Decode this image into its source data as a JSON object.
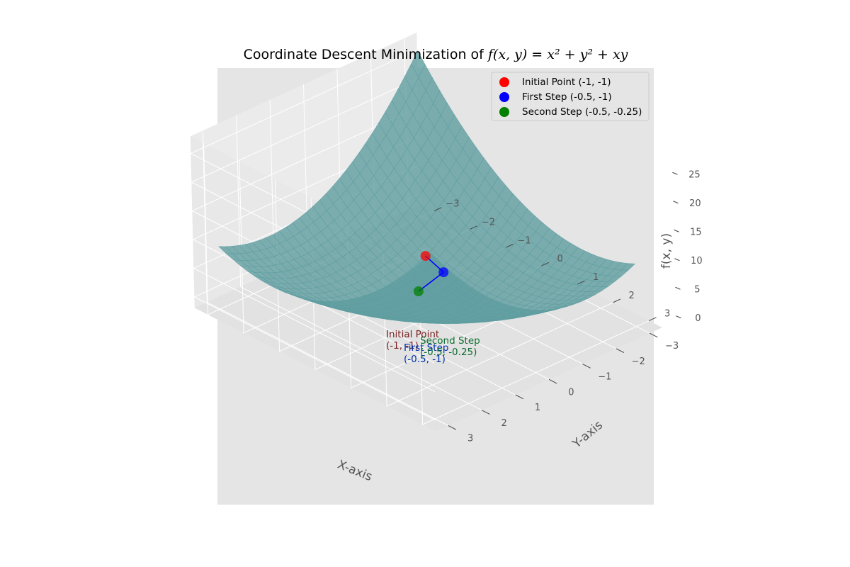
{
  "chart_data": {
    "type": "surface",
    "title_text": "Coordinate Descent Minimization of ",
    "title_math": "f(x, y) = x² + y² + xy",
    "xlabel": "X-axis",
    "ylabel": "Y-axis",
    "zlabel": "f(x, y)",
    "function": "x^2 + y^2 + x*y",
    "xlim": [
      -3,
      3
    ],
    "ylim": [
      -3,
      3
    ],
    "zlim": [
      0,
      27
    ],
    "xticks": [
      "−3",
      "−2",
      "−1",
      "0",
      "1",
      "2",
      "3"
    ],
    "yticks": [
      "−3",
      "−2",
      "−1",
      "0",
      "1",
      "2",
      "3"
    ],
    "zticks": [
      "0",
      "5",
      "10",
      "15",
      "20",
      "25"
    ],
    "grid": true,
    "legend_position": "top-right",
    "surface_color": "#5f9ea0",
    "points": [
      {
        "name": "Initial Point (-1, -1)",
        "x": -1,
        "y": -1,
        "z": 3,
        "color": "#ff0000",
        "label_line1": "Initial Point",
        "label_line2": "(-1, -1)"
      },
      {
        "name": "First Step (-0.5, -1)",
        "x": -0.5,
        "y": -1,
        "z": 1.75,
        "color": "#0000ff",
        "label_line1": "First Step",
        "label_line2": "(-0.5, -1)"
      },
      {
        "name": "Second Step (-0.5, -0.25)",
        "x": -0.5,
        "y": -0.25,
        "z": 0.4375,
        "color": "#008000",
        "label_line1": "Second Step",
        "label_line2": "(-0.5, -0.25)"
      }
    ]
  }
}
